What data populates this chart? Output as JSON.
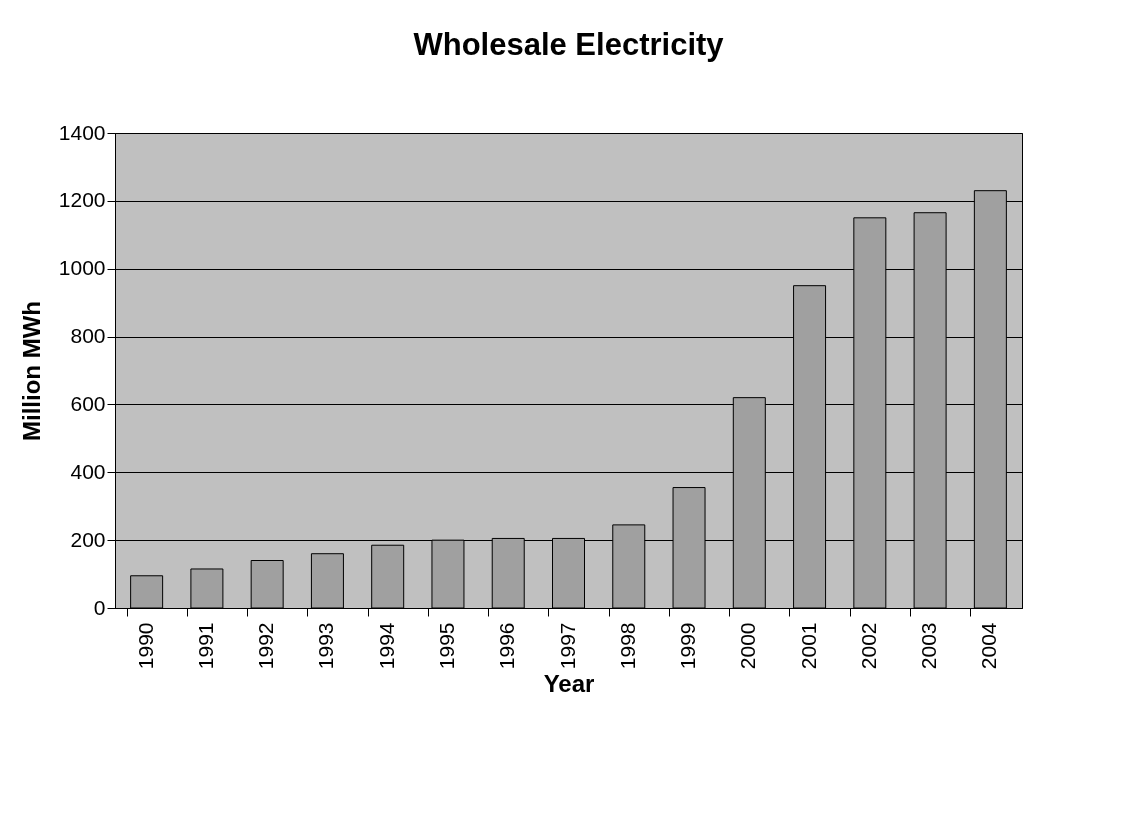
{
  "chart_data": {
    "type": "bar",
    "title": "Wholesale Electricity",
    "xlabel": "Year",
    "ylabel": "Million MWh",
    "categories": [
      "1990",
      "1991",
      "1992",
      "1993",
      "1994",
      "1995",
      "1996",
      "1997",
      "1998",
      "1999",
      "2000",
      "2001",
      "2002",
      "2003",
      "2004"
    ],
    "values": [
      95,
      115,
      140,
      160,
      185,
      200,
      205,
      205,
      245,
      355,
      620,
      950,
      1150,
      1165,
      1230
    ],
    "color": "#a0a0a0",
    "ylim": [
      0,
      1400
    ],
    "yticks": [
      0,
      200,
      400,
      600,
      800,
      1000,
      1200,
      1400
    ],
    "grid": "y"
  }
}
